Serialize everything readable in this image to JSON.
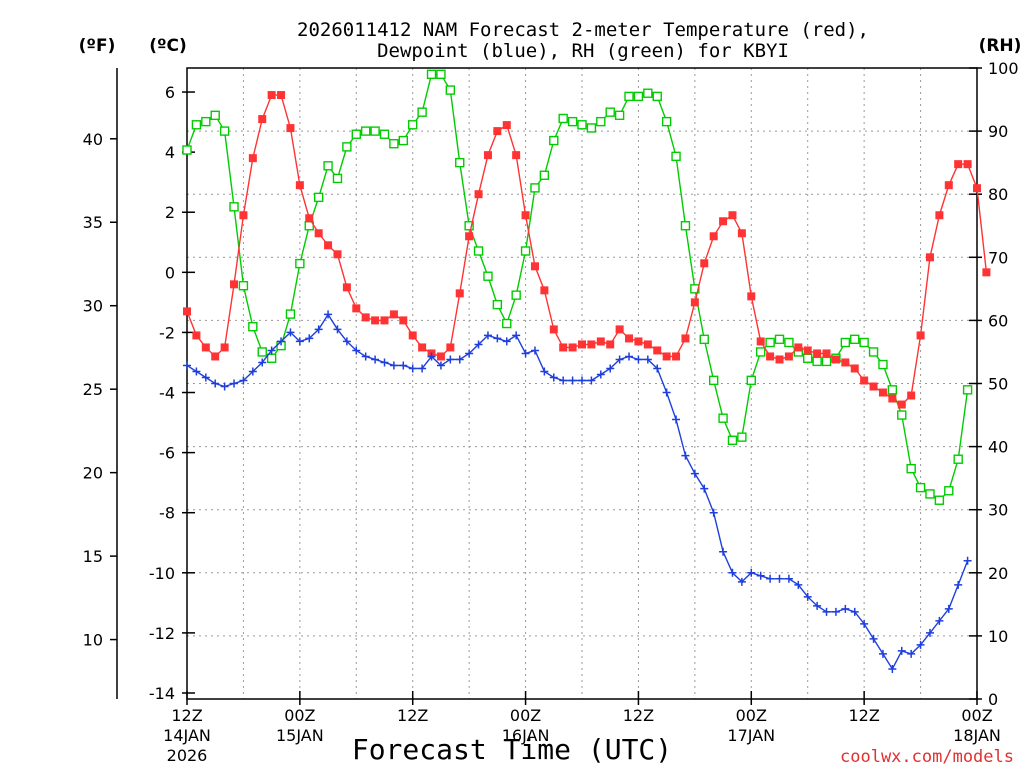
{
  "chart_data": {
    "type": "line",
    "title_line1": "2026011412 NAM Forecast 2-meter Temperature (red),",
    "title_line2": "Dewpoint (blue), RH (green) for KBYI",
    "xlabel": "Forecast Time (UTC)",
    "credit": "coolwx.com/models",
    "units": {
      "f": "(ºF)",
      "c": "(ºC)",
      "rh": "(RH)"
    },
    "ylim_c": [
      -14.2,
      6.8
    ],
    "ylim_rh": [
      0,
      100
    ],
    "xlim_hours": [
      0,
      84
    ],
    "x_ticks": [
      {
        "h": 0,
        "l1": "12Z",
        "l2": "14JAN",
        "l3": "2026"
      },
      {
        "h": 12,
        "l1": "00Z",
        "l2": "15JAN",
        "l3": ""
      },
      {
        "h": 24,
        "l1": "12Z",
        "l2": "",
        "l3": ""
      },
      {
        "h": 36,
        "l1": "00Z",
        "l2": "16JAN",
        "l3": ""
      },
      {
        "h": 48,
        "l1": "12Z",
        "l2": "",
        "l3": ""
      },
      {
        "h": 60,
        "l1": "00Z",
        "l2": "17JAN",
        "l3": ""
      },
      {
        "h": 72,
        "l1": "12Z",
        "l2": "",
        "l3": ""
      },
      {
        "h": 84,
        "l1": "00Z",
        "l2": "18JAN",
        "l3": ""
      }
    ],
    "y_ticks_c": [
      6,
      4,
      2,
      0,
      -2,
      -4,
      -6,
      -8,
      -10,
      -12,
      -14
    ],
    "y_ticks_f": [
      40,
      35,
      30,
      25,
      20,
      15,
      10
    ],
    "y_ticks_rh": [
      100,
      90,
      80,
      70,
      60,
      50,
      40,
      30,
      20,
      10,
      0
    ],
    "colors": {
      "temp": "#ff3333",
      "dewpoint": "#1f3fdd",
      "rh": "#00cc00",
      "grid": "#9a9a9a",
      "credit": "#e03030"
    },
    "series": [
      {
        "name": "Temperature",
        "unit": "C",
        "values": [
          -1.3,
          -2.1,
          -2.5,
          -2.8,
          -2.5,
          -0.4,
          1.9,
          3.8,
          5.1,
          5.9,
          5.9,
          4.8,
          2.9,
          1.8,
          1.3,
          0.9,
          0.6,
          -0.5,
          -1.2,
          -1.5,
          -1.6,
          -1.6,
          -1.4,
          -1.6,
          -2.1,
          -2.5,
          -2.7,
          -2.8,
          -2.5,
          -0.7,
          1.2,
          2.6,
          3.9,
          4.7,
          4.9,
          3.9,
          1.9,
          0.2,
          -0.6,
          -1.9,
          -2.5,
          -2.5,
          -2.4,
          -2.4,
          -2.3,
          -2.4,
          -1.9,
          -2.2,
          -2.3,
          -2.4,
          -2.6,
          -2.8,
          -2.8,
          -2.2,
          -1.0,
          0.3,
          1.2,
          1.7,
          1.9,
          1.3,
          -0.8,
          -2.3,
          -2.8,
          -2.9,
          -2.8,
          -2.5,
          -2.6,
          -2.7,
          -2.7,
          -2.9,
          -3.0,
          -3.2,
          -3.6,
          -3.8,
          -4.0,
          -4.2,
          -4.4,
          -4.1,
          -2.1,
          0.5,
          1.9,
          2.9,
          3.6,
          3.6,
          2.8,
          0.0
        ]
      },
      {
        "name": "Dewpoint",
        "unit": "C",
        "values": [
          -3.1,
          -3.3,
          -3.5,
          -3.7,
          -3.8,
          -3.7,
          -3.6,
          -3.3,
          -3.0,
          -2.6,
          -2.3,
          -2.0,
          -2.3,
          -2.2,
          -1.9,
          -1.4,
          -1.9,
          -2.3,
          -2.6,
          -2.8,
          -2.9,
          -3.0,
          -3.1,
          -3.1,
          -3.2,
          -3.2,
          -2.8,
          -3.1,
          -2.9,
          -2.9,
          -2.7,
          -2.4,
          -2.1,
          -2.2,
          -2.3,
          -2.1,
          -2.7,
          -2.6,
          -3.3,
          -3.5,
          -3.6,
          -3.6,
          -3.6,
          -3.6,
          -3.4,
          -3.2,
          -2.9,
          -2.8,
          -2.9,
          -2.9,
          -3.2,
          -4.0,
          -4.9,
          -6.1,
          -6.7,
          -7.2,
          -8.0,
          -9.3,
          -10.0,
          -10.3,
          -10.0,
          -10.1,
          -10.2,
          -10.2,
          -10.2,
          -10.4,
          -10.8,
          -11.1,
          -11.3,
          -11.3,
          -11.2,
          -11.3,
          -11.7,
          -12.2,
          -12.7,
          -13.2,
          -12.6,
          -12.7,
          -12.4,
          -12.0,
          -11.6,
          -11.2,
          -10.4,
          -9.6
        ]
      },
      {
        "name": "RH",
        "unit": "%",
        "values": [
          87,
          91,
          91.5,
          92.5,
          90,
          78,
          65.5,
          59,
          55,
          54,
          56,
          61,
          69,
          75,
          79.5,
          84.5,
          82.5,
          87.5,
          89.5,
          90,
          90,
          89.5,
          88,
          88.5,
          91,
          93,
          99,
          99,
          96.5,
          85,
          75,
          71,
          67,
          62.5,
          59.5,
          64,
          71,
          81,
          83,
          88.5,
          92,
          91.5,
          91,
          90.5,
          91.5,
          93,
          92.5,
          95.5,
          95.5,
          96,
          95.5,
          91.5,
          86,
          75,
          65,
          57,
          50.5,
          44.5,
          41,
          41.5,
          50.5,
          55,
          56.5,
          57,
          56.5,
          55,
          54,
          53.5,
          53.5,
          54,
          56.5,
          57,
          56.5,
          55,
          53,
          49,
          45,
          36.5,
          33.5,
          32.5,
          31.5,
          33,
          38,
          49
        ]
      }
    ]
  }
}
